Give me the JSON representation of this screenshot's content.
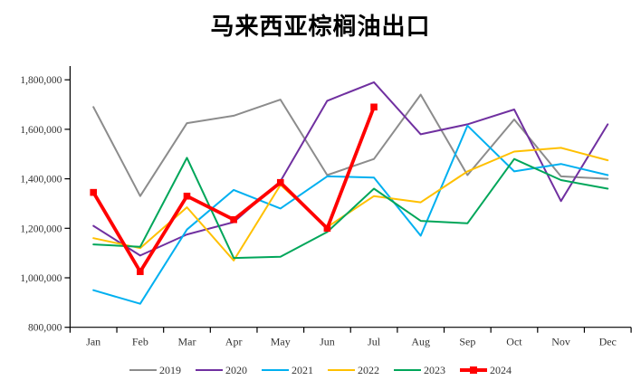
{
  "chart_data": {
    "type": "line",
    "title": "马来西亚棕榈油出口",
    "categories": [
      "Jan",
      "Feb",
      "Mar",
      "Apr",
      "May",
      "Jun",
      "Jul",
      "Aug",
      "Sep",
      "Oct",
      "Nov",
      "Dec"
    ],
    "y_axis": {
      "min": 800000,
      "max": 1800000,
      "step": 200000,
      "tick_labels": [
        "800,000",
        "1,000,000",
        "1,200,000",
        "1,400,000",
        "1,600,000",
        "1,800,000"
      ]
    },
    "grid": false,
    "legend_position": "bottom",
    "series": [
      {
        "name": "2019",
        "color": "#8C8C8C",
        "thick": false,
        "marker": "none",
        "values": [
          1690000,
          1330000,
          1625000,
          1655000,
          1720000,
          1415000,
          1480000,
          1740000,
          1415000,
          1640000,
          1410000,
          1400000
        ]
      },
      {
        "name": "2020",
        "color": "#7030A0",
        "thick": false,
        "marker": "none",
        "values": [
          1210000,
          1090000,
          1175000,
          1225000,
          1390000,
          1715000,
          1790000,
          1580000,
          1620000,
          1680000,
          1310000,
          1620000
        ]
      },
      {
        "name": "2021",
        "color": "#00B0F0",
        "thick": false,
        "marker": "none",
        "values": [
          950000,
          895000,
          1195000,
          1355000,
          1280000,
          1410000,
          1405000,
          1170000,
          1615000,
          1430000,
          1460000,
          1415000
        ]
      },
      {
        "name": "2022",
        "color": "#FFC000",
        "thick": false,
        "marker": "none",
        "values": [
          1160000,
          1120000,
          1285000,
          1070000,
          1375000,
          1205000,
          1330000,
          1305000,
          1430000,
          1510000,
          1525000,
          1475000
        ]
      },
      {
        "name": "2023",
        "color": "#00A65A",
        "thick": false,
        "marker": "none",
        "values": [
          1135000,
          1125000,
          1485000,
          1080000,
          1085000,
          1185000,
          1360000,
          1230000,
          1220000,
          1480000,
          1395000,
          1360000
        ]
      },
      {
        "name": "2024",
        "color": "#FF0000",
        "thick": true,
        "marker": "square",
        "values": [
          1345000,
          1025000,
          1330000,
          1235000,
          1385000,
          1200000,
          1690000
        ]
      }
    ]
  }
}
